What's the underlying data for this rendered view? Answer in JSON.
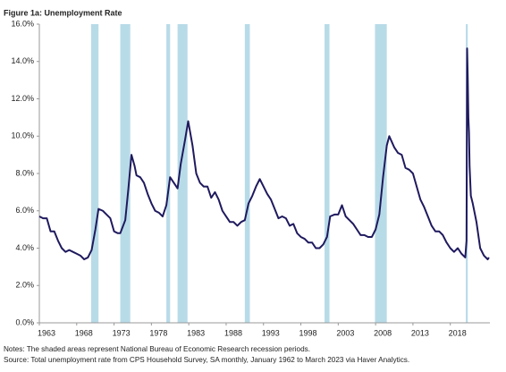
{
  "chart_data": {
    "type": "line",
    "title": "Figure 1a: Unemployment Rate",
    "notes": [
      "Notes: The shaded areas represent National Bureau of Economic Research recession periods.",
      "Source: Total unemployment rate from CPS Household Survey, SA monthly, January 1962 to March 2023  via Haver Analytics."
    ],
    "xlim": [
      1963,
      2023.3
    ],
    "xticks": [
      1963,
      1968,
      1973,
      1978,
      1983,
      1988,
      1993,
      1998,
      2003,
      2008,
      2013,
      2018
    ],
    "ylim": [
      0,
      16
    ],
    "yticks": [
      {
        "value": 0,
        "label": "0.0%"
      },
      {
        "value": 2,
        "label": "2.0%"
      },
      {
        "value": 4,
        "label": "4.0%"
      },
      {
        "value": 6,
        "label": "6.0%"
      },
      {
        "value": 8,
        "label": "8.0%"
      },
      {
        "value": 10,
        "label": "10.0%"
      },
      {
        "value": 12,
        "label": "12.0%"
      },
      {
        "value": 14,
        "label": "14.0%"
      },
      {
        "value": 16,
        "label": "16.0%"
      }
    ],
    "grid": false,
    "recession_color": "#b8dbe8",
    "recessions": [
      [
        1969.92,
        1970.92
      ],
      [
        1973.83,
        1975.17
      ],
      [
        1980.0,
        1980.5
      ],
      [
        1981.5,
        1982.83
      ],
      [
        1990.5,
        1991.17
      ],
      [
        2001.17,
        2001.83
      ],
      [
        2007.92,
        2009.5
      ],
      [
        2020.08,
        2020.33
      ]
    ],
    "x": [
      1963.0,
      1963.5,
      1964.0,
      1964.5,
      1965.0,
      1965.5,
      1966.0,
      1966.5,
      1967.0,
      1967.5,
      1968.0,
      1968.5,
      1969.0,
      1969.5,
      1970.0,
      1970.5,
      1970.92,
      1971.5,
      1972.0,
      1972.5,
      1973.0,
      1973.5,
      1973.83,
      1974.5,
      1974.92,
      1975.33,
      1975.75,
      1976.0,
      1976.5,
      1977.0,
      1977.5,
      1978.0,
      1978.5,
      1979.0,
      1979.5,
      1980.0,
      1980.5,
      1981.0,
      1981.5,
      1981.92,
      1982.5,
      1982.92,
      1983.5,
      1984.0,
      1984.5,
      1985.0,
      1985.5,
      1986.0,
      1986.5,
      1987.0,
      1987.5,
      1988.0,
      1988.5,
      1989.0,
      1989.5,
      1990.0,
      1990.5,
      1991.0,
      1991.5,
      1992.0,
      1992.5,
      1993.0,
      1993.5,
      1994.0,
      1994.5,
      1995.0,
      1995.5,
      1996.0,
      1996.5,
      1997.0,
      1997.5,
      1998.0,
      1998.5,
      1999.0,
      1999.5,
      2000.0,
      2000.5,
      2001.0,
      2001.5,
      2001.92,
      2002.5,
      2003.0,
      2003.5,
      2004.0,
      2004.5,
      2005.0,
      2005.5,
      2006.0,
      2006.5,
      2007.0,
      2007.5,
      2008.0,
      2008.5,
      2009.0,
      2009.5,
      2009.83,
      2010.5,
      2011.0,
      2011.5,
      2012.0,
      2012.5,
      2013.0,
      2013.5,
      2014.0,
      2014.5,
      2015.0,
      2015.5,
      2016.0,
      2016.5,
      2017.0,
      2017.5,
      2018.0,
      2018.5,
      2019.0,
      2019.5,
      2020.0,
      2020.17,
      2020.25,
      2020.33,
      2020.42,
      2020.5,
      2020.58,
      2020.75,
      2021.0,
      2021.5,
      2022.0,
      2022.5,
      2023.0,
      2023.17
    ],
    "series": [
      {
        "name": "Unemployment rate",
        "color": "#1f1a5e",
        "values": [
          5.7,
          5.6,
          5.6,
          4.9,
          4.9,
          4.4,
          4.0,
          3.8,
          3.9,
          3.8,
          3.7,
          3.6,
          3.4,
          3.5,
          3.9,
          5.0,
          6.1,
          6.0,
          5.8,
          5.6,
          4.9,
          4.8,
          4.8,
          5.5,
          7.2,
          9.0,
          8.4,
          7.9,
          7.8,
          7.5,
          6.9,
          6.4,
          6.0,
          5.9,
          5.7,
          6.3,
          7.8,
          7.5,
          7.2,
          8.5,
          9.8,
          10.8,
          9.5,
          8.0,
          7.5,
          7.3,
          7.3,
          6.7,
          7.0,
          6.6,
          6.0,
          5.7,
          5.4,
          5.4,
          5.2,
          5.4,
          5.5,
          6.4,
          6.8,
          7.3,
          7.7,
          7.3,
          6.9,
          6.6,
          6.1,
          5.6,
          5.7,
          5.6,
          5.2,
          5.3,
          4.8,
          4.6,
          4.5,
          4.3,
          4.3,
          4.0,
          4.0,
          4.2,
          4.6,
          5.7,
          5.8,
          5.8,
          6.3,
          5.7,
          5.5,
          5.3,
          5.0,
          4.7,
          4.7,
          4.6,
          4.6,
          5.0,
          5.8,
          7.8,
          9.5,
          10.0,
          9.4,
          9.1,
          9.0,
          8.3,
          8.2,
          8.0,
          7.3,
          6.6,
          6.2,
          5.7,
          5.2,
          4.9,
          4.9,
          4.7,
          4.3,
          4.0,
          3.8,
          4.0,
          3.7,
          3.5,
          4.4,
          14.7,
          13.2,
          11.0,
          10.2,
          8.4,
          6.8,
          6.4,
          5.4,
          4.0,
          3.6,
          3.4,
          3.5
        ]
      }
    ]
  }
}
